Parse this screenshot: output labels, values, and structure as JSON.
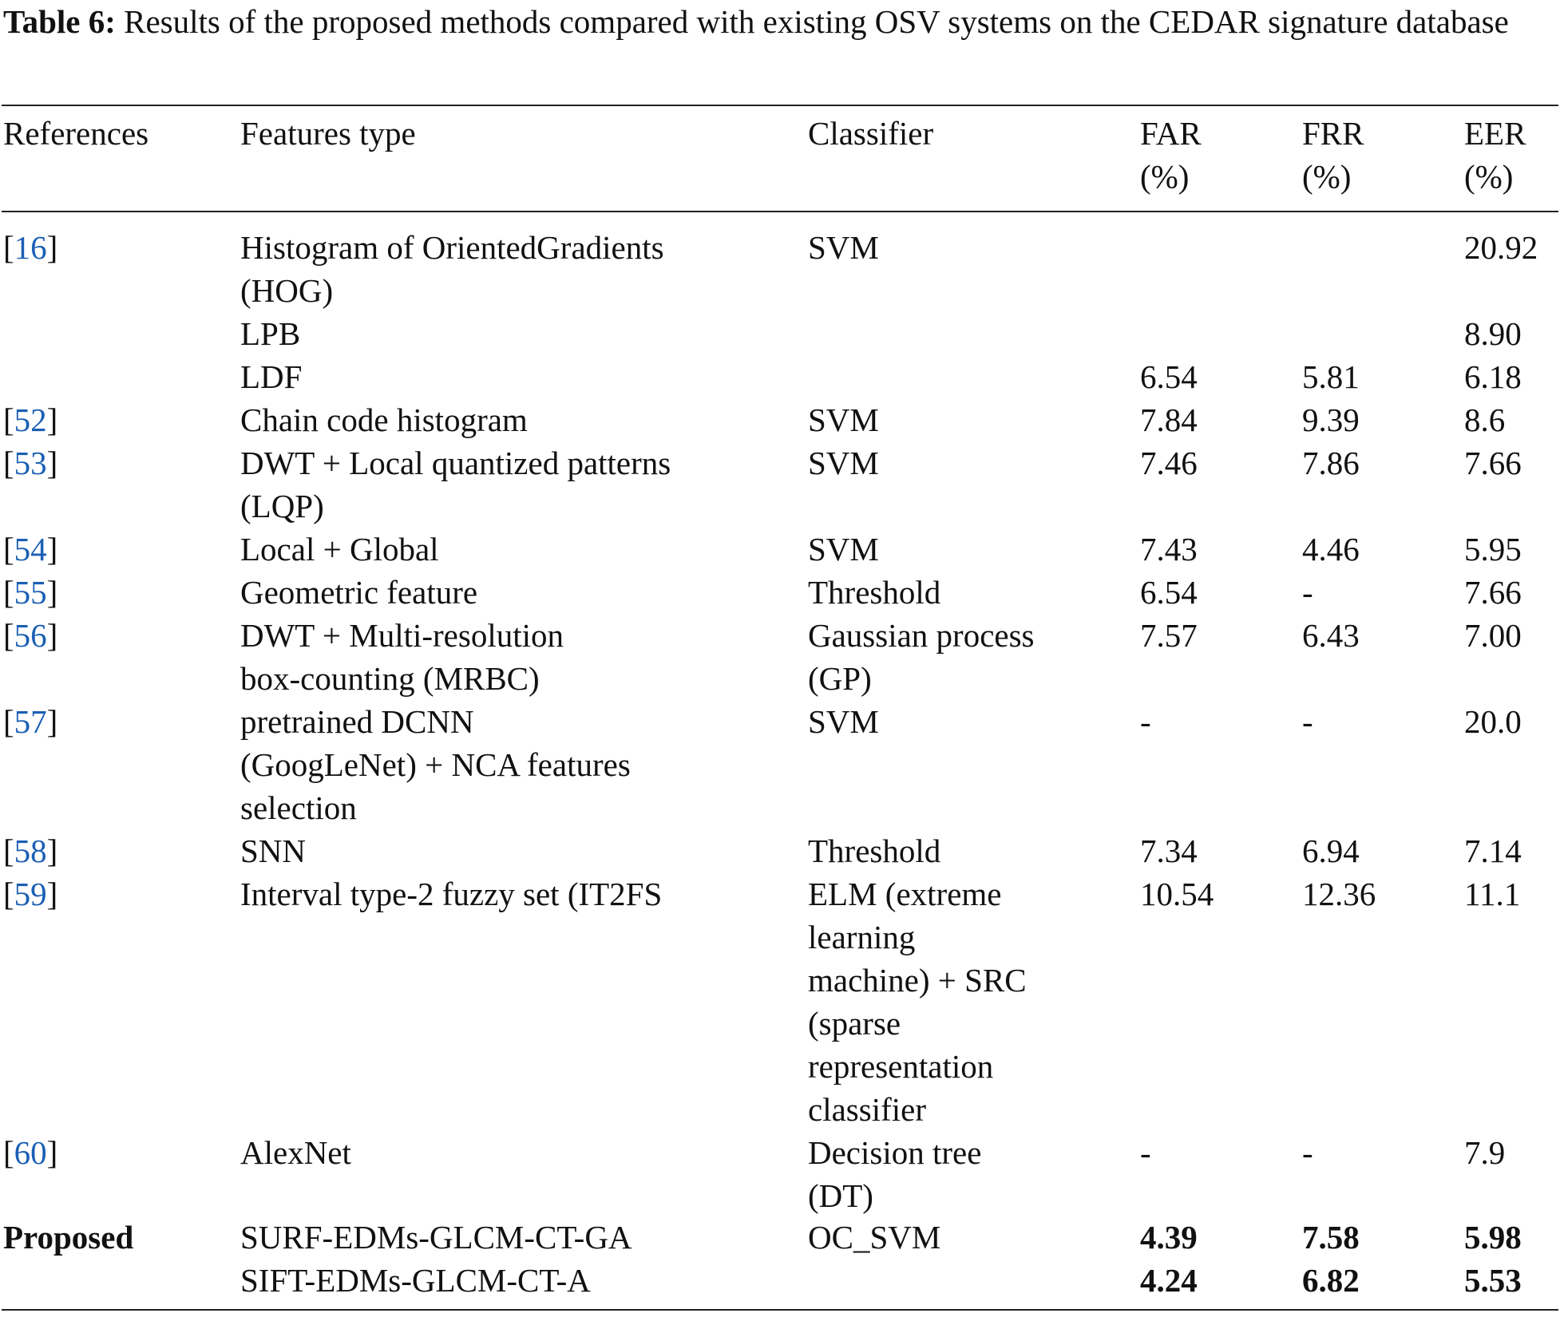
{
  "caption": {
    "label": "Table 6:",
    "text": "Results of the proposed methods compared with existing OSV systems on the CEDAR signature database"
  },
  "header": {
    "references": "References",
    "features": "Features type",
    "classifier": "Classifier",
    "far": [
      "FAR",
      "(%)"
    ],
    "frr": [
      "FRR",
      "(%)"
    ],
    "eer": [
      "EER",
      "(%)"
    ]
  },
  "rows": [
    {
      "ref_num": "16",
      "features": [
        "Histogram of OrientedGradients",
        "(HOG)"
      ],
      "classifier": [
        "SVM"
      ],
      "far": "",
      "frr": "",
      "eer": "20.92"
    },
    {
      "ref_num": "",
      "features": [
        "LPB"
      ],
      "classifier": [],
      "far": "",
      "frr": "",
      "eer": "8.90"
    },
    {
      "ref_num": "",
      "features": [
        "LDF"
      ],
      "classifier": [],
      "far": "6.54",
      "frr": "5.81",
      "eer": "6.18"
    },
    {
      "ref_num": "52",
      "features": [
        "Chain code histogram"
      ],
      "classifier": [
        "SVM"
      ],
      "far": "7.84",
      "frr": "9.39",
      "eer": "8.6"
    },
    {
      "ref_num": "53",
      "features": [
        "DWT + Local quantized patterns",
        "(LQP)"
      ],
      "classifier": [
        "SVM"
      ],
      "far": "7.46",
      "frr": "7.86",
      "eer": "7.66"
    },
    {
      "ref_num": "54",
      "features": [
        "Local + Global"
      ],
      "classifier": [
        "SVM"
      ],
      "far": "7.43",
      "frr": "4.46",
      "eer": "5.95"
    },
    {
      "ref_num": "55",
      "features": [
        "Geometric feature"
      ],
      "classifier": [
        "Threshold"
      ],
      "far": "6.54",
      "frr": "-",
      "eer": "7.66"
    },
    {
      "ref_num": "56",
      "features": [
        "DWT + Multi-resolution",
        "box-counting (MRBC)"
      ],
      "classifier": [
        "Gaussian process",
        "(GP)"
      ],
      "far": "7.57",
      "frr": "6.43",
      "eer": "7.00"
    },
    {
      "ref_num": "57",
      "features": [
        "pretrained DCNN",
        "(GoogLeNet) + NCA features",
        "selection"
      ],
      "classifier": [
        "SVM"
      ],
      "far": "-",
      "frr": "-",
      "eer": "20.0"
    },
    {
      "ref_num": "58",
      "features": [
        "SNN"
      ],
      "classifier": [
        "Threshold"
      ],
      "far": "7.34",
      "frr": "6.94",
      "eer": "7.14"
    },
    {
      "ref_num": "59",
      "features": [
        "Interval type-2 fuzzy set (IT2FS"
      ],
      "classifier": [
        "ELM (extreme",
        "learning",
        "machine) + SRC",
        "(sparse",
        "representation",
        "classifier"
      ],
      "far": "10.54",
      "frr": "12.36",
      "eer": "11.1"
    },
    {
      "ref_num": "60",
      "features": [
        "AlexNet"
      ],
      "classifier": [
        "Decision tree",
        "(DT)"
      ],
      "far": "-",
      "frr": "-",
      "eer": "7.9"
    }
  ],
  "proposed": {
    "label": "Proposed",
    "classifier": "OC_SVM",
    "methods": [
      {
        "features": "SURF-EDMs-GLCM-CT-GA",
        "far": "4.39",
        "frr": "7.58",
        "eer": "5.98"
      },
      {
        "features": "SIFT-EDMs-GLCM-CT-A",
        "far": "4.24",
        "frr": "6.82",
        "eer": "5.53"
      }
    ]
  },
  "colors": {
    "text": "#111111",
    "reference_link": "#1a5fb4"
  }
}
